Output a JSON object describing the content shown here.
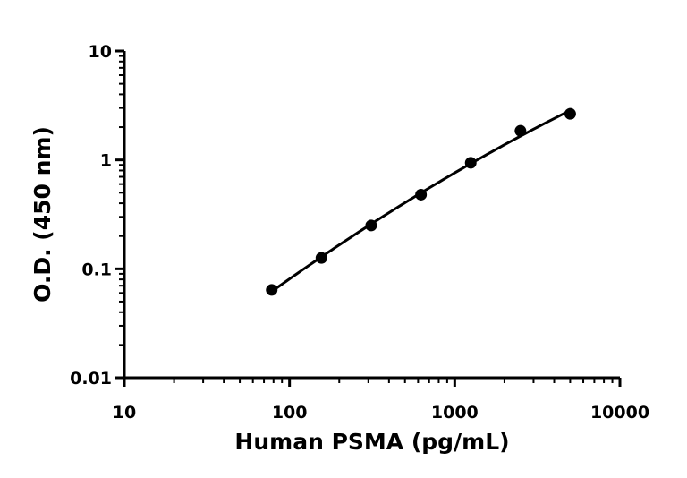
{
  "chart_data": {
    "type": "scatter",
    "title": "",
    "xlabel": "Human PSMA (pg/mL)",
    "ylabel": "O.D. (450 nm)",
    "xscale": "log",
    "yscale": "log",
    "xlim": [
      10,
      10000
    ],
    "ylim": [
      0.01,
      10
    ],
    "x_ticks": [
      10,
      100,
      1000,
      10000
    ],
    "y_ticks": [
      0.01,
      0.1,
      1,
      10
    ],
    "x_tick_labels": [
      "10",
      "100",
      "1000",
      "10000"
    ],
    "y_tick_labels": [
      "0.01",
      "0.1",
      "1",
      "10"
    ],
    "grid": false,
    "legend": "none",
    "series": [
      {
        "x": [
          78,
          156,
          312,
          625,
          1250,
          2500,
          5000
        ],
        "y": [
          0.064,
          0.126,
          0.25,
          0.48,
          0.94,
          1.85,
          2.65
        ],
        "marker": "filled-circle",
        "fit_curve": true,
        "color": "#000000"
      }
    ]
  }
}
